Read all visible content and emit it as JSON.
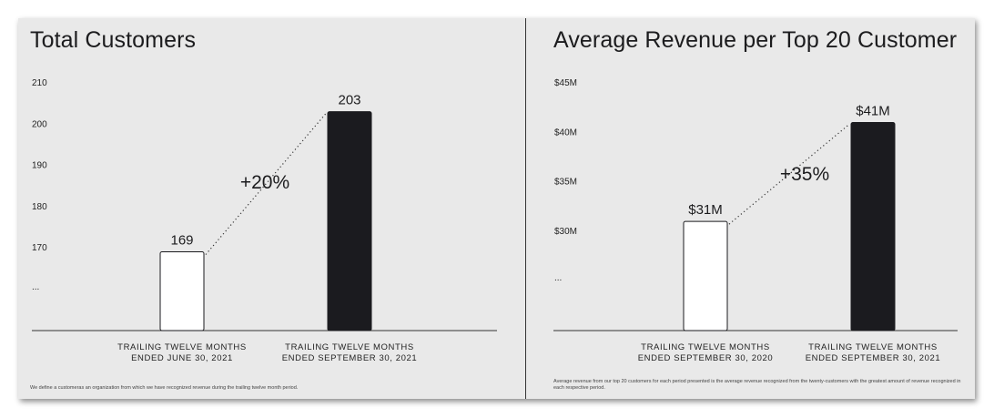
{
  "colors": {
    "background": "#e9e9e9",
    "bar_dark": "#1b1b1f",
    "bar_light": "#ffffff",
    "text": "#1c1c1e"
  },
  "chart_data": [
    {
      "type": "bar",
      "title": "Total Customers",
      "categories": [
        [
          "TRAILING TWELVE MONTHS",
          "ENDED JUNE 30, 2021"
        ],
        [
          "TRAILING TWELVE MONTHS",
          "ENDED SEPTEMBER 30, 2021"
        ]
      ],
      "values": [
        169,
        203
      ],
      "data_labels": [
        "169",
        "203"
      ],
      "y_ticks": [
        170,
        180,
        190,
        200,
        210
      ],
      "y_tick_labels": [
        "170",
        "180",
        "190",
        "200",
        "210"
      ],
      "y_break_label": "...",
      "growth_label": "+20%",
      "ylim": [
        160,
        210
      ],
      "footnote": "We define a customeras an organization from which we have recognized revenue during the trailing twelve month period."
    },
    {
      "type": "bar",
      "title": "Average Revenue per Top 20 Customer",
      "categories": [
        [
          "TRAILING TWELVE MONTHS",
          "ENDED SEPTEMBER 30, 2020"
        ],
        [
          "TRAILING TWELVE MONTHS",
          "ENDED SEPTEMBER 30, 2021"
        ]
      ],
      "values": [
        31,
        41
      ],
      "data_labels": [
        "$31M",
        "$41M"
      ],
      "y_ticks": [
        30,
        35,
        40,
        45
      ],
      "y_tick_labels": [
        "$30M",
        "$35M",
        "$40M",
        "$45M"
      ],
      "y_break_label": "...",
      "growth_label": "+35%",
      "ylim": [
        25,
        45
      ],
      "footnote": "Average revenue from our top 20 customers for each period presented is the average revenue recognized from the twenty-customers with the greatest amount of revenue recognized in each respective period."
    }
  ]
}
